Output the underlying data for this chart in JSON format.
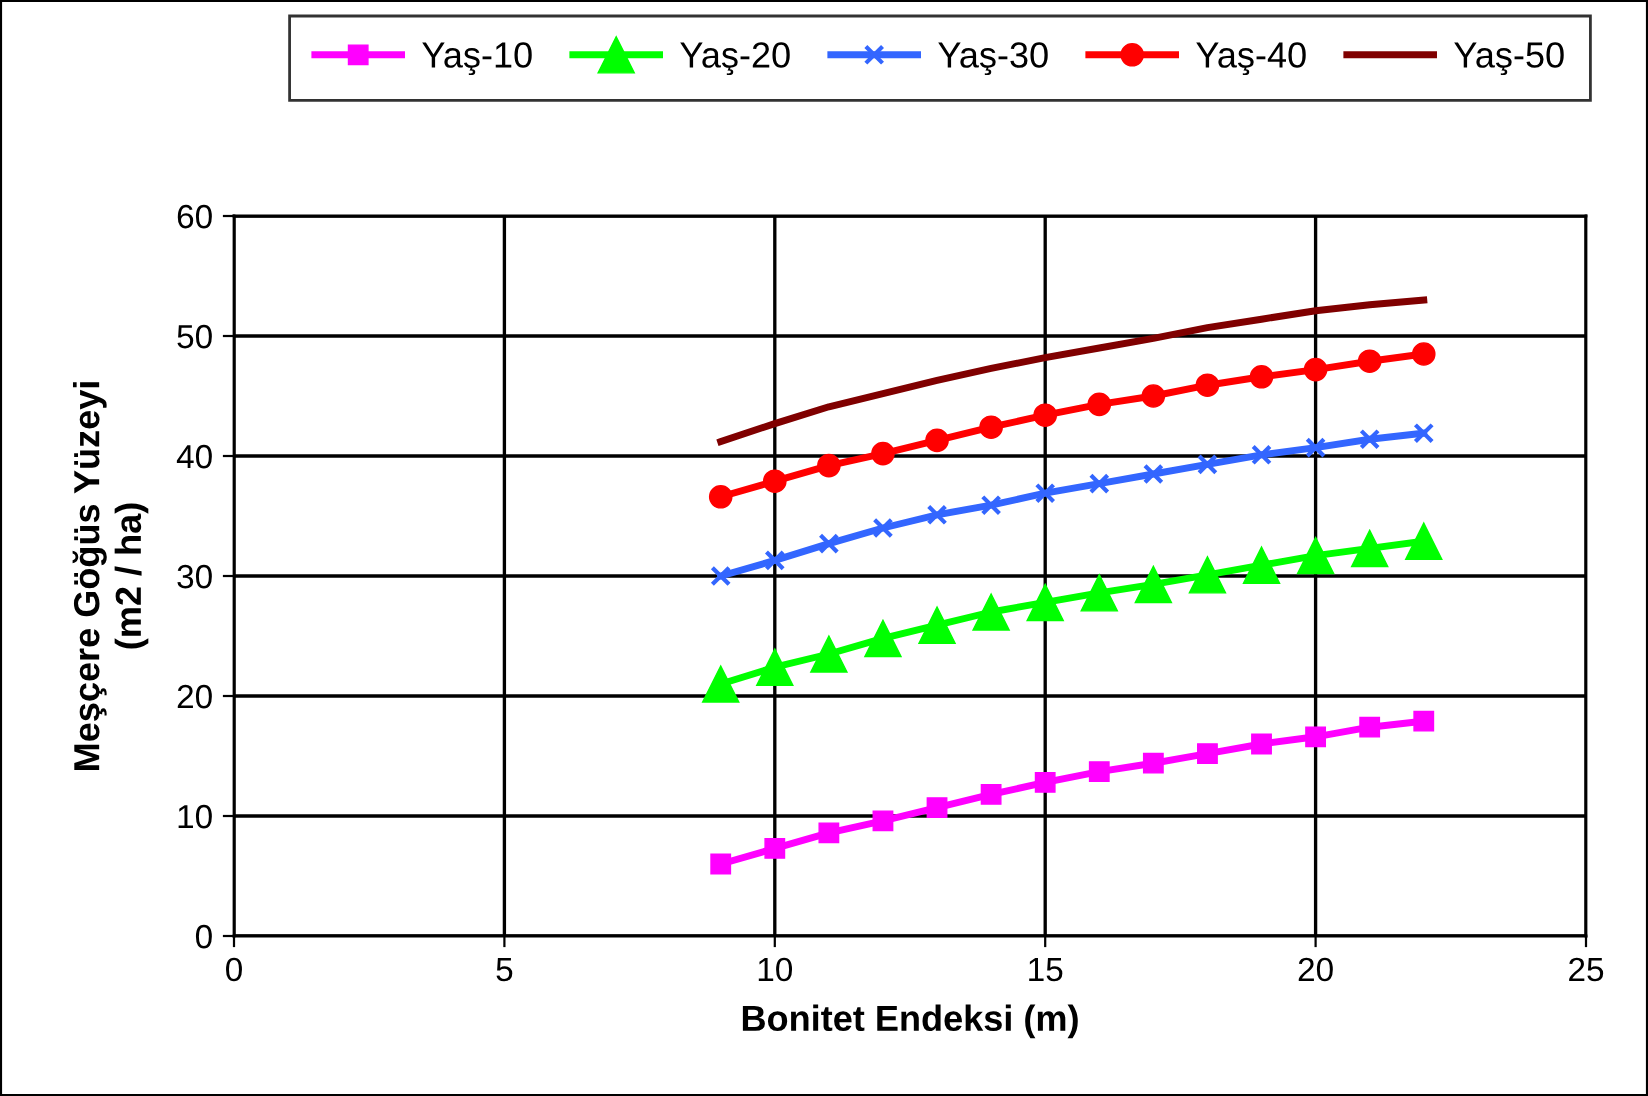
{
  "chart_data": {
    "type": "line",
    "xlabel": "Bonitet Endeksi (m)",
    "ylabel": "Meşçere Göğüs Yüzeyi\n(m2 / ha)",
    "x": [
      9,
      10,
      11,
      12,
      13,
      14,
      15,
      16,
      17,
      18,
      19,
      20,
      21,
      22
    ],
    "series": [
      {
        "name": "Yaş-10",
        "color": "#ff00ff",
        "marker": "square",
        "values": [
          6.0,
          7.3,
          8.6,
          9.6,
          10.7,
          11.8,
          12.8,
          13.7,
          14.4,
          15.2,
          16.0,
          16.6,
          17.4,
          17.9
        ]
      },
      {
        "name": "Yaş-20",
        "color": "#00ff00",
        "marker": "triangle",
        "values": [
          21.0,
          22.4,
          23.5,
          24.8,
          25.9,
          27.0,
          27.8,
          28.6,
          29.3,
          30.1,
          30.9,
          31.7,
          32.3,
          32.9
        ]
      },
      {
        "name": "Yaş-30",
        "color": "#3366ff",
        "marker": "cross",
        "values": [
          30.0,
          31.3,
          32.7,
          34.0,
          35.1,
          35.9,
          36.9,
          37.7,
          38.5,
          39.3,
          40.1,
          40.7,
          41.4,
          41.9
        ]
      },
      {
        "name": "Yaş-40",
        "color": "#ff0000",
        "marker": "circle",
        "values": [
          36.6,
          37.9,
          39.2,
          40.2,
          41.3,
          42.4,
          43.4,
          44.3,
          45.0,
          45.9,
          46.6,
          47.2,
          47.9,
          48.5
        ]
      },
      {
        "name": "Yaş-50",
        "color": "#800000",
        "marker": "none",
        "values": [
          41.2,
          42.7,
          44.1,
          45.2,
          46.3,
          47.3,
          48.2,
          49.0,
          49.8,
          50.7,
          51.4,
          52.1,
          52.6,
          53.0
        ]
      }
    ],
    "xlim": [
      0,
      25
    ],
    "xticks": [
      0,
      5,
      10,
      15,
      20,
      25
    ],
    "ylim": [
      0,
      60
    ],
    "yticks": [
      0,
      10,
      20,
      30,
      40,
      50,
      60
    ],
    "grid": true,
    "legend": "top",
    "line_style": "solid"
  }
}
